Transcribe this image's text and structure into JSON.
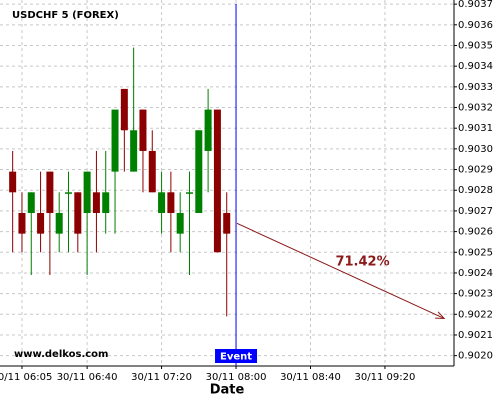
{
  "chart_data": {
    "type": "candlestick",
    "title": "USDCHF 5 (FOREX)",
    "x_label": "Date",
    "watermark": "www.delkos.com",
    "up_color": "#008000",
    "down_color": "#8b0000",
    "x": [
      360,
      365,
      370,
      375,
      380,
      385,
      390,
      395,
      400,
      405,
      410,
      415,
      420,
      425,
      430,
      435,
      440,
      445,
      450,
      455,
      460,
      465,
      470,
      475
    ],
    "open": [
      0.90289,
      0.90269,
      0.90269,
      0.90269,
      0.90289,
      0.90259,
      0.90279,
      0.90279,
      0.90269,
      0.90279,
      0.90269,
      0.90289,
      0.90329,
      0.90289,
      0.90319,
      0.90299,
      0.90269,
      0.90279,
      0.90259,
      0.90279,
      0.90269,
      0.90299,
      0.90319,
      0.90269
    ],
    "high": [
      0.90299,
      0.90279,
      0.90279,
      0.90289,
      0.90289,
      0.90279,
      0.90289,
      0.90279,
      0.90289,
      0.90299,
      0.90299,
      0.90319,
      0.90329,
      0.90349,
      0.90319,
      0.90309,
      0.90289,
      0.90289,
      0.90279,
      0.90289,
      0.90309,
      0.90329,
      0.90319,
      0.90279
    ],
    "low": [
      0.9025,
      0.9025,
      0.90239,
      0.9025,
      0.90239,
      0.9025,
      0.9025,
      0.9025,
      0.90239,
      0.9025,
      0.90259,
      0.90259,
      0.90289,
      0.90289,
      0.90279,
      0.90279,
      0.90259,
      0.9025,
      0.9025,
      0.90239,
      0.90269,
      0.90279,
      0.9025,
      0.90219
    ],
    "close": [
      0.90279,
      0.90259,
      0.90279,
      0.90259,
      0.90269,
      0.90269,
      0.90279,
      0.90259,
      0.90289,
      0.90269,
      0.90279,
      0.90319,
      0.90309,
      0.90309,
      0.90299,
      0.90279,
      0.90279,
      0.90269,
      0.90269,
      0.90279,
      0.90309,
      0.90319,
      0.9025,
      0.90259
    ],
    "xlim": [
      353.2,
      597.1
    ],
    "ylim": [
      0.90195,
      0.90372
    ],
    "xticks": [
      {
        "value": 365,
        "label": "30/11 06:05"
      },
      {
        "value": 400,
        "label": "30/11 06:40"
      },
      {
        "value": 440,
        "label": "30/11 07:20"
      },
      {
        "value": 480,
        "label": "30/11 08:00"
      },
      {
        "value": 520,
        "label": "30/11 08:40"
      },
      {
        "value": 560,
        "label": "30/11 09:20"
      }
    ],
    "yticks": [
      {
        "value": 0.902,
        "label": "0.9020"
      },
      0.9021,
      0.9022,
      0.9023,
      0.9024,
      0.9025,
      0.9026,
      0.9027,
      0.9028,
      0.9029,
      {
        "value": 0.903,
        "label": "0.9030"
      },
      0.9031,
      0.9032,
      0.9033,
      0.9034,
      0.9035,
      0.9036,
      0.9037
    ],
    "grid": true,
    "event": {
      "x": 480,
      "label": "Event",
      "color": "#0000ff"
    },
    "forecast": {
      "x": [
        480.5,
        591.8
      ],
      "y": [
        0.90264,
        0.90218
      ],
      "label": "71.42%",
      "color": "#8b1a1a"
    }
  }
}
